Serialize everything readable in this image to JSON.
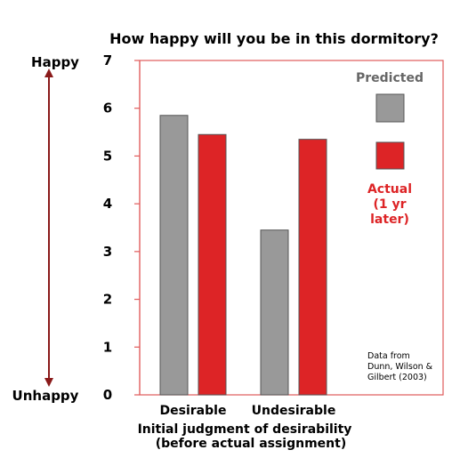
{
  "chart_data": {
    "type": "bar",
    "title": "How happy will you be in this dormitory?",
    "xlabel": [
      "Initial judgment of desirability",
      "(before actual assignment)"
    ],
    "ylabel": "",
    "ylim": [
      0,
      7
    ],
    "yticks": [
      0,
      1,
      2,
      3,
      4,
      5,
      6,
      7
    ],
    "categories": [
      "Desirable",
      "Undesirable"
    ],
    "series": [
      {
        "name": "Predicted",
        "values": [
          5.85,
          3.45
        ]
      },
      {
        "name": "Actual (1 yr later)",
        "values": [
          5.45,
          5.35
        ]
      }
    ],
    "scale_labels": {
      "top": "Happy",
      "bottom": "Unhappy"
    },
    "legend": {
      "placement": "top-right",
      "predicted_label": "Predicted",
      "actual_label_lines": [
        "Actual",
        "(1 yr",
        "later)"
      ]
    },
    "annotation": [
      "Data from",
      "Dunn, Wilson &",
      "Gilbert (2003)"
    ],
    "grid": false
  },
  "colors": {
    "predicted": "#999999",
    "actual": "#dd2426",
    "frame": "#e05a5a",
    "arrow": "#8a1a1a",
    "predicted_text": "#666666",
    "actual_text": "#dd2426"
  }
}
